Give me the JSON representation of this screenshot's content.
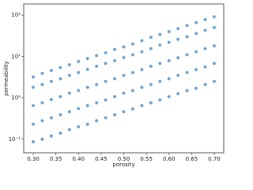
{
  "chart_data": {
    "type": "scatter",
    "x_label": "porosity",
    "y_label": "permeability",
    "x": [
      0.3,
      0.3,
      0.3,
      0.3,
      0.3,
      0.32,
      0.32,
      0.32,
      0.32,
      0.32,
      0.34,
      0.34,
      0.34,
      0.34,
      0.34,
      0.36,
      0.36,
      0.36,
      0.36,
      0.36,
      0.38,
      0.38,
      0.38,
      0.38,
      0.38,
      0.4,
      0.4,
      0.4,
      0.4,
      0.4,
      0.42,
      0.42,
      0.42,
      0.42,
      0.42,
      0.44,
      0.44,
      0.44,
      0.44,
      0.44,
      0.46,
      0.46,
      0.46,
      0.46,
      0.46,
      0.48,
      0.48,
      0.48,
      0.48,
      0.48,
      0.5,
      0.5,
      0.5,
      0.5,
      0.5,
      0.52,
      0.52,
      0.52,
      0.52,
      0.52,
      0.54,
      0.54,
      0.54,
      0.54,
      0.54,
      0.56,
      0.56,
      0.56,
      0.56,
      0.56,
      0.58,
      0.58,
      0.58,
      0.58,
      0.58,
      0.6,
      0.6,
      0.6,
      0.6,
      0.6,
      0.62,
      0.62,
      0.62,
      0.62,
      0.62,
      0.64,
      0.64,
      0.64,
      0.64,
      0.64,
      0.66,
      0.66,
      0.66,
      0.66,
      0.66,
      0.68,
      0.68,
      0.68,
      0.68,
      0.68,
      0.7,
      0.7,
      0.7,
      0.7,
      0.7
    ],
    "y": [
      0.087,
      0.23,
      0.65,
      1.8,
      3.2,
      0.1,
      0.28,
      0.76,
      2.1,
      3.9,
      0.12,
      0.33,
      0.91,
      2.5,
      4.6,
      0.14,
      0.39,
      1.07,
      2.9,
      5.4,
      0.17,
      0.46,
      1.3,
      3.5,
      6.3,
      0.2,
      0.55,
      1.5,
      4.1,
      7.6,
      0.23,
      0.65,
      1.8,
      4.9,
      8.9,
      0.28,
      0.76,
      2.1,
      5.8,
      10.5,
      0.33,
      0.89,
      2.5,
      6.8,
      12.3,
      0.39,
      1.07,
      2.9,
      7.9,
      14.8,
      0.46,
      1.3,
      3.5,
      9.5,
      17,
      0.54,
      1.5,
      4.1,
      11,
      20,
      0.65,
      1.8,
      4.8,
      13,
      24,
      0.76,
      2.1,
      5.8,
      15.5,
      29,
      0.89,
      2.5,
      6.8,
      19,
      34,
      1.07,
      2.9,
      7.9,
      22,
      40,
      1.26,
      3.5,
      9.3,
      26,
      47,
      1.5,
      4.1,
      11,
      30,
      56,
      1.7,
      4.8,
      13,
      36,
      66,
      2.1,
      5.6,
      15.5,
      43,
      78,
      2.5,
      6.8,
      18,
      50,
      91
    ],
    "color": "#3f86c0",
    "xlim": [
      0.279,
      0.721
    ],
    "xticks": [
      {
        "value": 0.3,
        "label": "0.30"
      },
      0.35,
      {
        "value": 0.4,
        "label": "0.40"
      },
      0.45,
      {
        "value": 0.5,
        "label": "0.50"
      },
      0.55,
      {
        "value": 0.6,
        "label": "0.60"
      },
      0.65,
      {
        "value": 0.7,
        "label": "0.70"
      }
    ],
    "ylim": [
      0.047,
      186
    ],
    "yticks": [
      {
        "value": 0.1,
        "label": "10⁻¹"
      },
      {
        "value": 1,
        "label": "10⁰"
      },
      {
        "value": 10,
        "label": "10¹"
      },
      {
        "value": 100,
        "label": "10²"
      }
    ],
    "y_scale": "log"
  }
}
